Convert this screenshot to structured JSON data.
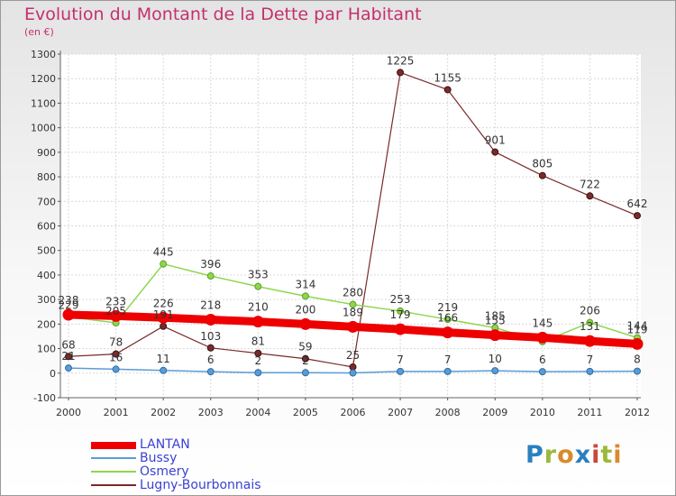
{
  "chart_data": {
    "type": "line",
    "title": "Evolution du Montant de la Dette par Habitant",
    "subtitle": "(en €)",
    "x": [
      "2000",
      "2001",
      "2002",
      "2003",
      "2004",
      "2005",
      "2006",
      "2007",
      "2008",
      "2009",
      "2010",
      "2011",
      "2012"
    ],
    "y_ticks": [
      "-100",
      "0",
      "100",
      "200",
      "300",
      "400",
      "500",
      "600",
      "700",
      "800",
      "900",
      "1000",
      "1100",
      "1200",
      "1300"
    ],
    "ylim": [
      -100,
      1300
    ],
    "grid": true,
    "legend_position": "bottom-left",
    "series": [
      {
        "name": "LANTAN",
        "color": "#ee0000",
        "values": [
          238,
          233,
          226,
          218,
          210,
          200,
          189,
          179,
          166,
          155,
          145,
          131,
          119
        ],
        "labels": [
          "238",
          "233",
          "226",
          "218",
          "210",
          "200",
          "189",
          "179",
          "166",
          "155",
          "145",
          "131",
          "119"
        ]
      },
      {
        "name": "Bussy",
        "color": "#5b9bd5",
        "values": [
          21,
          16,
          11,
          6,
          2,
          2,
          1,
          7,
          7,
          10,
          6,
          7,
          8
        ],
        "labels": [
          "21",
          "16",
          "11",
          "6",
          "2",
          "2",
          "",
          "7",
          "7",
          "10",
          "6",
          "7",
          "8"
        ]
      },
      {
        "name": "Osmery",
        "color": "#8fd64f",
        "values": [
          229,
          205,
          445,
          396,
          353,
          314,
          280,
          253,
          219,
          185,
          128,
          206,
          144
        ],
        "labels": [
          "229",
          "205",
          "445",
          "396",
          "353",
          "314",
          "280",
          "253",
          "219",
          "185",
          "",
          "206",
          "144"
        ]
      },
      {
        "name": "Lugny-Bourbonnais",
        "color": "#7a2a2a",
        "values": [
          68,
          78,
          191,
          103,
          81,
          59,
          25,
          1225,
          1155,
          901,
          805,
          722,
          642
        ],
        "labels": [
          "68",
          "78",
          "191",
          "103",
          "81",
          "59",
          "25",
          "1225",
          "1155",
          "901",
          "805",
          "722",
          "642"
        ]
      }
    ]
  },
  "logo_text": [
    "P",
    "r",
    "o",
    "x",
    "i",
    "t",
    "i"
  ]
}
